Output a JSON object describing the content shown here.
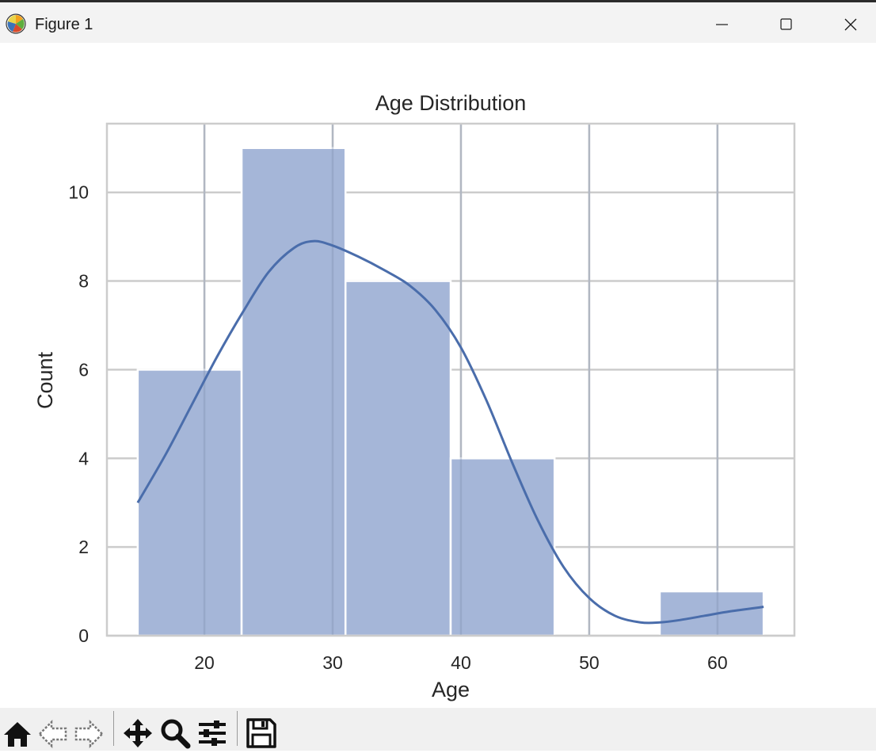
{
  "window": {
    "title": "Figure 1"
  },
  "toolbar": {
    "buttons": [
      "home-icon",
      "back-arrow-icon",
      "forward-arrow-icon",
      "pan-icon",
      "zoom-icon",
      "configure-subplots-icon",
      "save-icon"
    ]
  },
  "colors": {
    "bar_fill": "#a5b6d8",
    "kde_line": "#4a6dab",
    "grid": "#cccccc",
    "text": "#262626"
  },
  "chart_data": {
    "type": "bar",
    "title": "Age Distribution",
    "xlabel": "Age",
    "ylabel": "Count",
    "bins": [
      {
        "x0": 14.8,
        "x1": 22.9,
        "count": 6
      },
      {
        "x0": 22.9,
        "x1": 31.0,
        "count": 11
      },
      {
        "x0": 31.0,
        "x1": 39.2,
        "count": 8
      },
      {
        "x0": 39.2,
        "x1": 47.3,
        "count": 4
      },
      {
        "x0": 47.3,
        "x1": 55.5,
        "count": 0
      },
      {
        "x0": 55.5,
        "x1": 63.6,
        "count": 1
      }
    ],
    "kde": {
      "x": [
        14.8,
        17,
        19,
        21,
        23,
        25,
        27,
        28.5,
        30,
        32,
        34,
        36,
        38,
        40,
        42,
        44,
        46,
        48,
        50,
        52,
        54,
        55.5,
        57,
        59,
        61,
        63.6
      ],
      "y": [
        3.0,
        4.1,
        5.2,
        6.3,
        7.3,
        8.2,
        8.75,
        8.9,
        8.8,
        8.55,
        8.25,
        7.9,
        7.35,
        6.5,
        5.3,
        3.9,
        2.6,
        1.55,
        0.85,
        0.45,
        0.3,
        0.3,
        0.35,
        0.45,
        0.55,
        0.65
      ]
    },
    "xticks": [
      20,
      30,
      40,
      50,
      60
    ],
    "yticks": [
      0,
      2,
      4,
      6,
      8,
      10
    ],
    "xlim": [
      12.4,
      66.0
    ],
    "ylim": [
      0,
      11.55
    ],
    "grid": true
  }
}
